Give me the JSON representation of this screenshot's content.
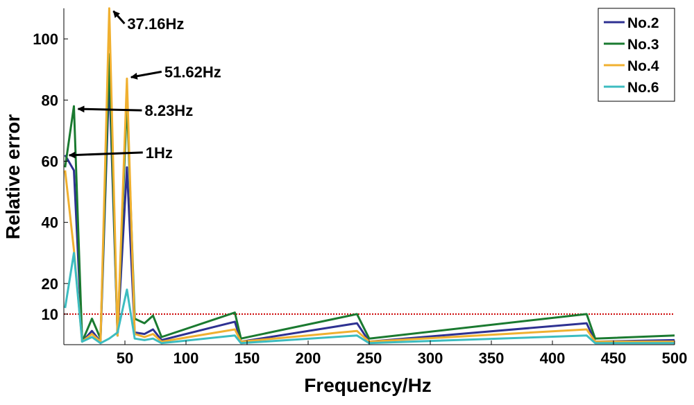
{
  "chart_data": {
    "type": "line",
    "xlabel": "Frequency/Hz",
    "ylabel": "Relative error",
    "xlim": [
      0,
      500
    ],
    "ylim": [
      0,
      110
    ],
    "xticks": [
      50,
      100,
      150,
      200,
      250,
      300,
      350,
      400,
      450,
      500
    ],
    "yticks": [
      10,
      20,
      40,
      60,
      80,
      100
    ],
    "grid": false,
    "legend_position": "top-right",
    "threshold": {
      "y": 10,
      "color": "#cc0000",
      "style": "dotted"
    },
    "series": [
      {
        "name": "No.2",
        "color": "#2e3192",
        "x": [
          1,
          8.23,
          15,
          23,
          30,
          37.16,
          44,
          51.62,
          58,
          66,
          73,
          80,
          140,
          145,
          240,
          250,
          428,
          435,
          500
        ],
        "y": [
          62,
          57,
          1,
          4.5,
          1,
          88,
          3,
          58,
          4,
          3.5,
          5,
          1.5,
          7.5,
          1,
          7,
          1,
          7,
          1,
          1.5
        ]
      },
      {
        "name": "No.3",
        "color": "#1a7a30",
        "x": [
          1,
          8.23,
          15,
          23,
          30,
          37.16,
          44,
          51.62,
          58,
          66,
          73,
          80,
          140,
          145,
          240,
          250,
          428,
          435,
          500
        ],
        "y": [
          58,
          78,
          1,
          8.5,
          2,
          95,
          3,
          80,
          8.5,
          7,
          9.5,
          2.5,
          10.5,
          2,
          10,
          2,
          10,
          2,
          3
        ]
      },
      {
        "name": "No.4",
        "color": "#f0b030",
        "x": [
          1,
          8.23,
          15,
          23,
          30,
          37.16,
          44,
          51.62,
          58,
          66,
          73,
          80,
          140,
          145,
          240,
          250,
          428,
          435,
          500
        ],
        "y": [
          57,
          31,
          1,
          3.5,
          1,
          110,
          3,
          87,
          3.5,
          2.5,
          3.5,
          1,
          5,
          1,
          4.5,
          1,
          5,
          1,
          1
        ]
      },
      {
        "name": "No.6",
        "color": "#3cbcc0",
        "x": [
          1,
          8.23,
          15,
          23,
          30,
          37.16,
          44,
          51.62,
          58,
          66,
          73,
          80,
          140,
          145,
          240,
          250,
          428,
          435,
          500
        ],
        "y": [
          12,
          30,
          1,
          2.5,
          0.5,
          2,
          4,
          18,
          2,
          1.5,
          2,
          0.5,
          3,
          0.5,
          3,
          0.5,
          3,
          0.5,
          0.5
        ]
      }
    ],
    "annotations": [
      {
        "label": "37.16Hz",
        "x": 37.16,
        "y": 110
      },
      {
        "label": "51.62Hz",
        "x": 51.62,
        "y": 87
      },
      {
        "label": "8.23Hz",
        "x": 8.23,
        "y": 78
      },
      {
        "label": "1Hz",
        "x": 1,
        "y": 61.5
      }
    ]
  }
}
